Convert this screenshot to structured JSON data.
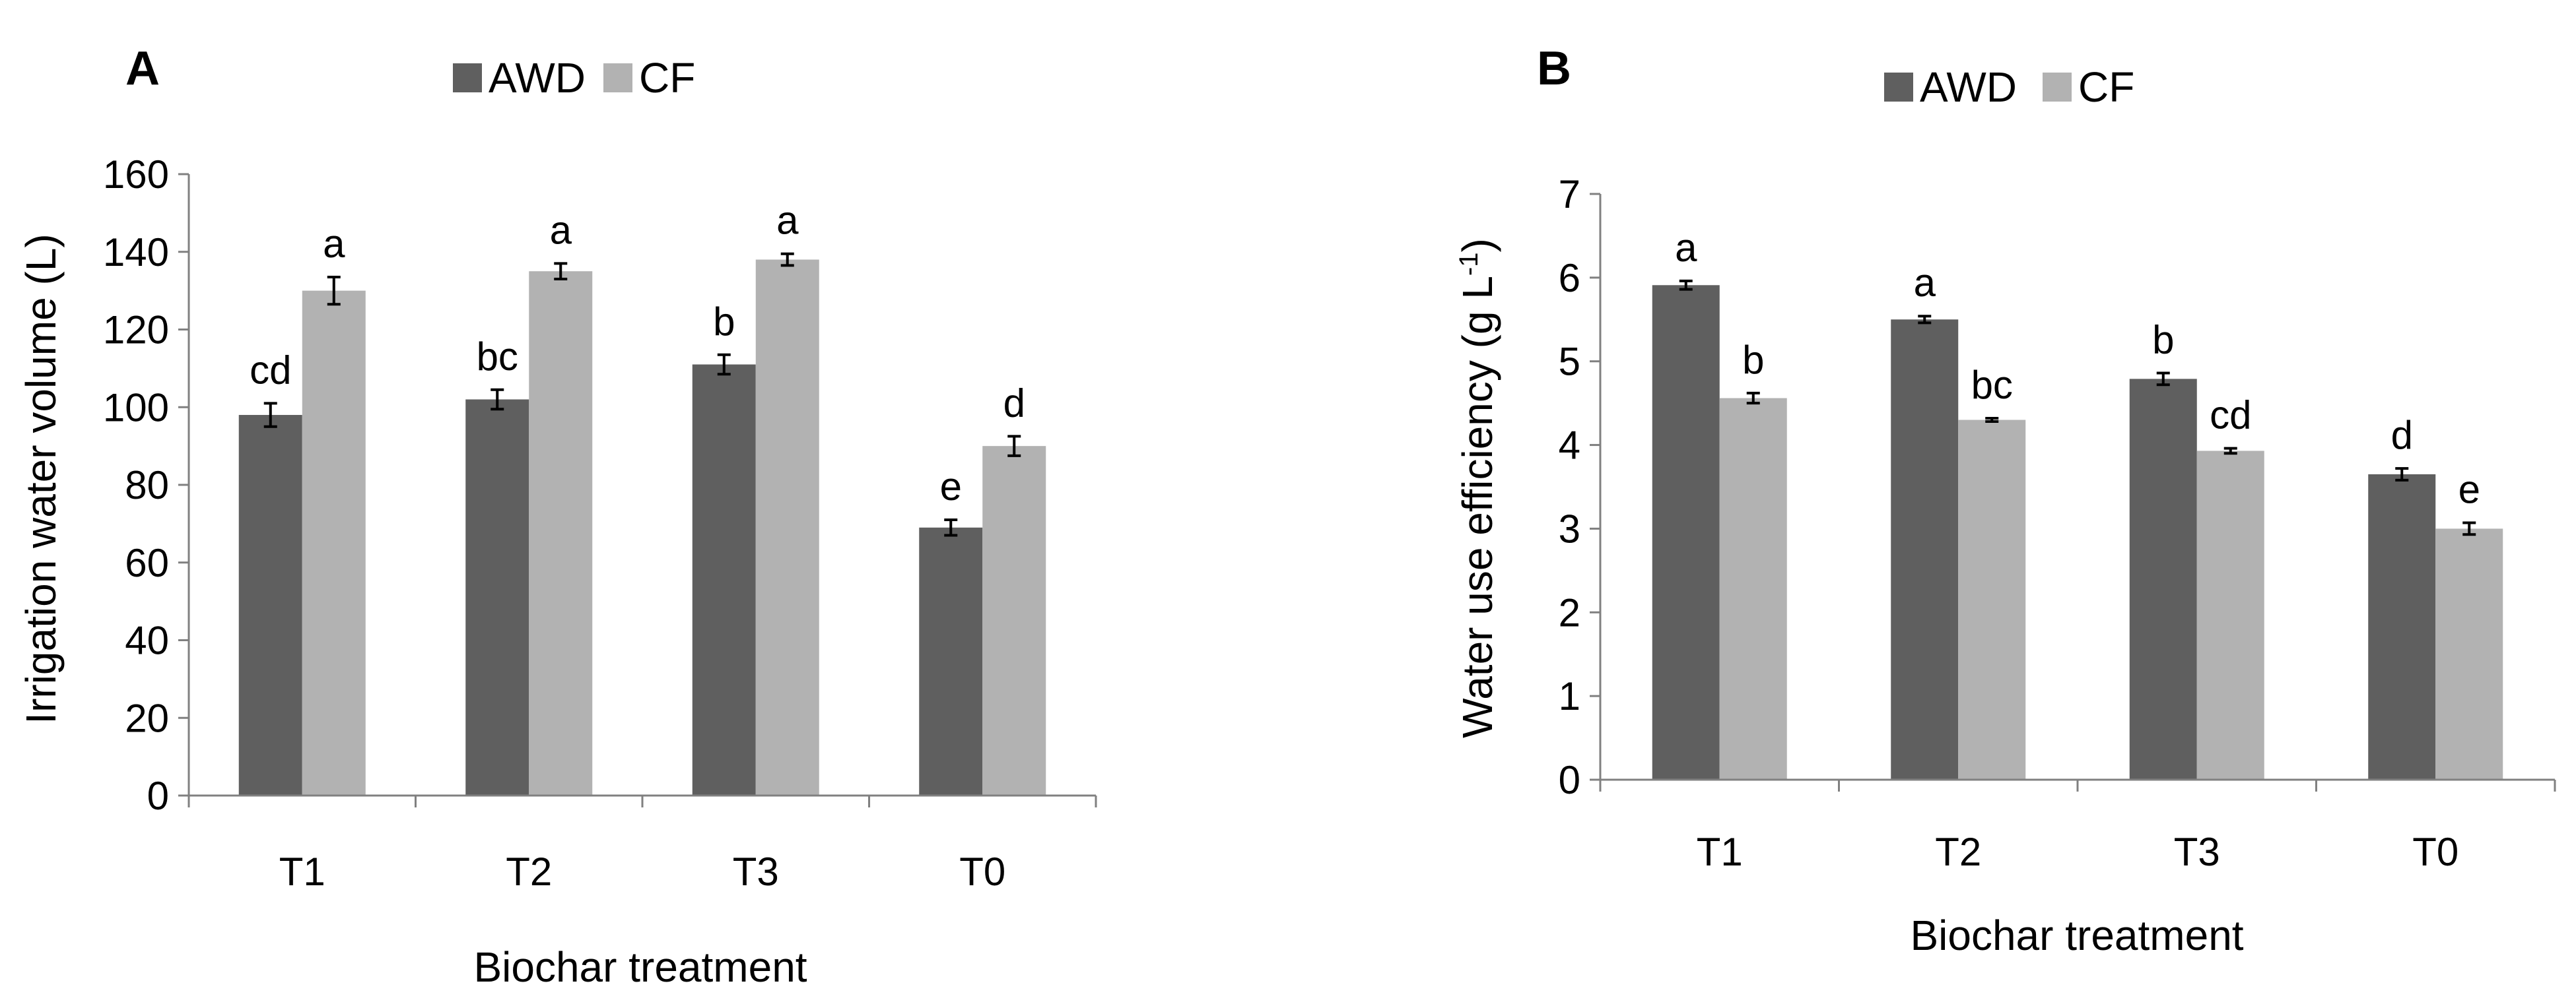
{
  "chart_data": [
    {
      "panel": "A",
      "type": "bar",
      "categories": [
        "T1",
        "T2",
        "T3",
        "T0"
      ],
      "series": [
        {
          "name": "AWD",
          "values": [
            98,
            102,
            111,
            69
          ],
          "errors": [
            3,
            2.5,
            2.5,
            2
          ],
          "labels": [
            "cd",
            "bc",
            "b",
            "e"
          ]
        },
        {
          "name": "CF",
          "values": [
            130,
            135,
            138,
            90
          ],
          "errors": [
            3.5,
            2,
            1.5,
            2.5
          ],
          "labels": [
            "a",
            "a",
            "a",
            "d"
          ]
        }
      ],
      "colors": [
        "#5f5f5f",
        "#b2b2b2"
      ],
      "ylim": [
        0,
        160
      ],
      "yticks": [
        "0",
        "20",
        "40",
        "60",
        "80",
        "100",
        "120",
        "140",
        "160"
      ],
      "xlabel": "Biochar treatment",
      "ylabel": "Irrigation water volume  (L)",
      "legend": "top"
    },
    {
      "panel": "B",
      "type": "bar",
      "categories": [
        "T1",
        "T2",
        "T3",
        "T0"
      ],
      "series": [
        {
          "name": "AWD",
          "values": [
            5.91,
            5.5,
            4.79,
            3.65
          ],
          "errors": [
            0.05,
            0.04,
            0.07,
            0.07
          ],
          "labels": [
            "a",
            "a",
            "b",
            "d"
          ]
        },
        {
          "name": "CF",
          "values": [
            4.56,
            4.3,
            3.93,
            3.0
          ],
          "errors": [
            0.06,
            0.02,
            0.03,
            0.07
          ],
          "labels": [
            "b",
            "bc",
            "cd",
            "e"
          ]
        }
      ],
      "colors": [
        "#5f5f5f",
        "#b2b2b2"
      ],
      "ylim": [
        0,
        7
      ],
      "yticks": [
        "0",
        "1",
        "2",
        "3",
        "4",
        "5",
        "6",
        "7"
      ],
      "xlabel": "Biochar treatment",
      "ylabel_main": "Water use efficiency (g L",
      "ylabel_sup": "-1",
      "ylabel_end": ")",
      "legend": "top"
    }
  ]
}
